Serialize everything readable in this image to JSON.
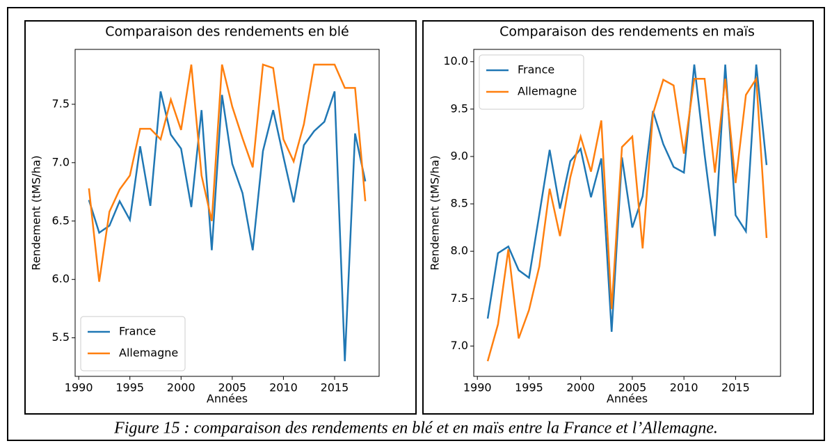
{
  "chart_data": [
    {
      "type": "line",
      "title": "Comparaison des rendements en blé",
      "xlabel": "Années",
      "ylabel": "Rendement (tMS/ha)",
      "x": [
        1991,
        1992,
        1993,
        1994,
        1995,
        1996,
        1997,
        1998,
        1999,
        2000,
        2001,
        2002,
        2003,
        2004,
        2005,
        2006,
        2007,
        2008,
        2009,
        2010,
        2011,
        2012,
        2013,
        2014,
        2015,
        2016,
        2017,
        2018
      ],
      "series": [
        {
          "name": "France",
          "color": "#1f77b4",
          "values": [
            6.68,
            6.4,
            6.46,
            6.67,
            6.51,
            7.14,
            6.63,
            7.61,
            7.24,
            7.12,
            6.62,
            7.45,
            6.25,
            7.58,
            6.99,
            6.74,
            6.25,
            7.1,
            7.45,
            7.05,
            6.66,
            7.15,
            7.27,
            7.35,
            7.61,
            5.3,
            7.25,
            6.84
          ]
        },
        {
          "name": "Allemagne",
          "color": "#ff7f0e",
          "values": [
            6.78,
            5.98,
            6.58,
            6.77,
            6.89,
            7.29,
            7.29,
            7.2,
            7.54,
            7.28,
            7.84,
            6.89,
            6.5,
            7.84,
            7.48,
            7.21,
            6.96,
            7.84,
            7.81,
            7.2,
            7.01,
            7.33,
            7.84,
            7.84,
            7.84,
            7.64,
            7.64,
            6.67
          ]
        }
      ],
      "xlim": [
        1989.65,
        2019.35
      ],
      "xticks": [
        1990,
        1995,
        2000,
        2005,
        2010,
        2015
      ],
      "ylim": [
        5.17,
        7.97
      ],
      "yticks": [
        5.5,
        {
          "value": 6,
          "label": "6.0"
        },
        6.5,
        {
          "value": 7,
          "label": "7.0"
        },
        7.5
      ],
      "legend": "lower left",
      "grid": false
    },
    {
      "type": "line",
      "title": "Comparaison des rendements en maïs",
      "xlabel": "Années",
      "ylabel": "Rendement (tMS/ha)",
      "x": [
        1991,
        1992,
        1993,
        1994,
        1995,
        1996,
        1997,
        1998,
        1999,
        2000,
        2001,
        2002,
        2003,
        2004,
        2005,
        2006,
        2007,
        2008,
        2009,
        2010,
        2011,
        2012,
        2013,
        2014,
        2015,
        2016,
        2017,
        2018
      ],
      "series": [
        {
          "name": "France",
          "color": "#1f77b4",
          "values": [
            7.29,
            7.98,
            8.05,
            7.8,
            7.72,
            8.39,
            9.07,
            8.45,
            8.95,
            9.08,
            8.57,
            8.98,
            7.15,
            8.99,
            8.25,
            8.58,
            9.48,
            9.13,
            8.89,
            8.83,
            9.97,
            9.02,
            8.16,
            9.97,
            8.38,
            8.21,
            9.97,
            8.91
          ]
        },
        {
          "name": "Allemagne",
          "color": "#ff7f0e",
          "values": [
            6.84,
            7.23,
            8.02,
            7.08,
            7.38,
            7.84,
            8.66,
            8.16,
            8.78,
            9.21,
            8.84,
            9.38,
            7.39,
            9.1,
            9.21,
            8.03,
            9.45,
            9.81,
            9.75,
            9.03,
            9.82,
            9.82,
            8.83,
            9.82,
            8.72,
            9.65,
            9.82,
            8.14
          ]
        }
      ],
      "xlim": [
        1989.65,
        2019.35
      ],
      "xticks": [
        1990,
        1995,
        2000,
        2005,
        2010,
        2015
      ],
      "ylim": [
        6.68,
        10.13
      ],
      "yticks": [
        {
          "value": 7,
          "label": "7.0"
        },
        7.5,
        {
          "value": 8,
          "label": "8.0"
        },
        8.5,
        {
          "value": 9,
          "label": "9.0"
        },
        9.5,
        {
          "value": 10,
          "label": "10.0"
        }
      ],
      "legend": "upper left",
      "grid": false
    }
  ],
  "caption": "Figure 15 : comparaison des rendements en blé et en maïs entre la France et l’Allemagne."
}
